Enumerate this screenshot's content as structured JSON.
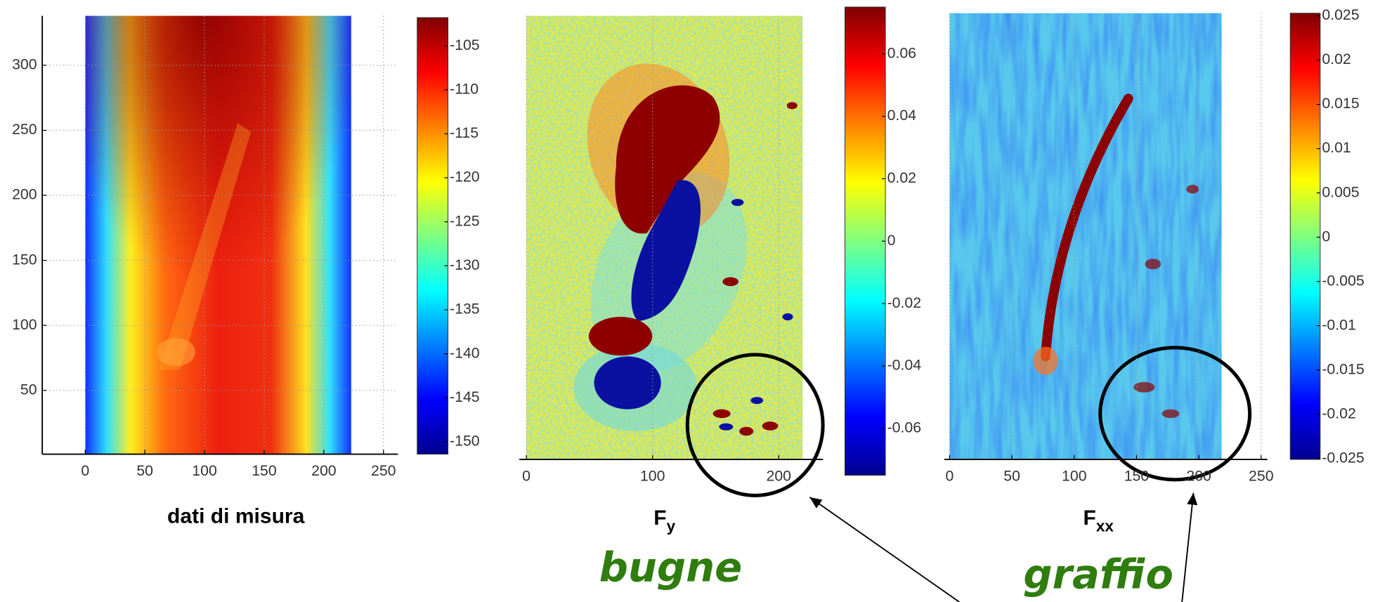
{
  "chart_data": [
    {
      "type": "heatmap",
      "xlabel": "dati di misura",
      "xlim": [
        -36,
        262
      ],
      "xticks": [
        0,
        50,
        100,
        150,
        200,
        250
      ],
      "ylim": [
        1,
        338
      ],
      "yticks": [
        50,
        100,
        150,
        200,
        250,
        300
      ],
      "clim": [
        -151.4,
        -101.8
      ],
      "cticks": [
        -105,
        -110,
        -115,
        -120,
        -125,
        -130,
        -135,
        -140,
        -145,
        -150
      ]
    },
    {
      "type": "heatmap",
      "xlabel": "F",
      "xlabel_sub": "y",
      "xlim": [
        -5.6,
        235
      ],
      "xticks": [
        0,
        100,
        200
      ],
      "ylim": [
        1,
        338
      ],
      "clim": [
        -0.075,
        0.075
      ],
      "cticks": [
        0.06,
        0.04,
        0.02,
        0,
        -0.02,
        -0.04,
        -0.06
      ]
    },
    {
      "type": "heatmap",
      "xlabel": "F",
      "xlabel_sub": "xx",
      "xlim": [
        -4.2,
        255
      ],
      "xticks": [
        0,
        50,
        100,
        150,
        200,
        250
      ],
      "ylim": [
        1,
        338
      ],
      "clim": [
        -0.0251,
        0.0253
      ],
      "cticks": [
        0.025,
        0.02,
        0.015,
        0.01,
        0.005,
        0,
        -0.005,
        -0.01,
        -0.015,
        -0.02,
        -0.025
      ]
    }
  ],
  "annotations": [
    "bugne",
    "graffio"
  ]
}
